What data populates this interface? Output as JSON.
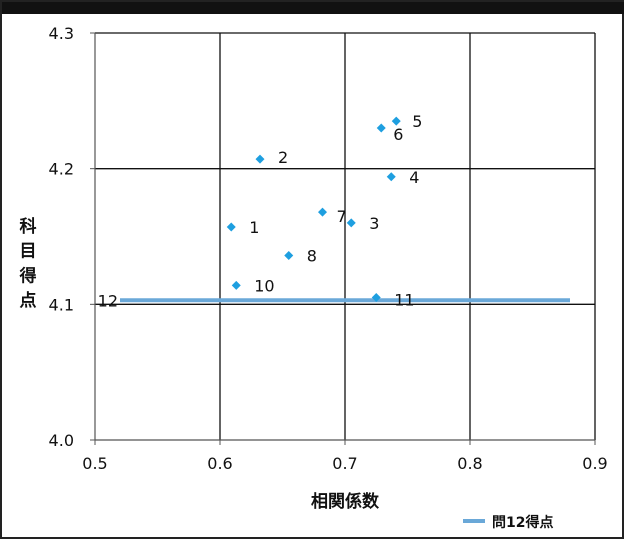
{
  "header_text": "",
  "chart_data": {
    "type": "scatter",
    "title": "",
    "xlabel": "相関係数",
    "ylabel": "科目得点",
    "xlim": [
      0.5,
      0.9
    ],
    "ylim": [
      4.0,
      4.3
    ],
    "x_ticks": [
      0.5,
      0.6,
      0.7,
      0.8,
      0.9
    ],
    "y_ticks": [
      4.0,
      4.1,
      4.2,
      4.3
    ],
    "x_tick_labels": [
      "0.5",
      "0.6",
      "0.7",
      "0.8",
      "0.9"
    ],
    "y_tick_labels": [
      "4.0",
      "4.1",
      "4.2",
      "4.3"
    ],
    "grid": true,
    "points": [
      {
        "label": "1",
        "x": 0.609,
        "y": 4.157
      },
      {
        "label": "2",
        "x": 0.632,
        "y": 4.207
      },
      {
        "label": "3",
        "x": 0.705,
        "y": 4.16
      },
      {
        "label": "4",
        "x": 0.737,
        "y": 4.194
      },
      {
        "label": "5",
        "x": 0.741,
        "y": 4.235
      },
      {
        "label": "6",
        "x": 0.729,
        "y": 4.23
      },
      {
        "label": "7",
        "x": 0.682,
        "y": 4.168
      },
      {
        "label": "8",
        "x": 0.655,
        "y": 4.136
      },
      {
        "label": "10",
        "x": 0.613,
        "y": 4.114
      },
      {
        "label": "11",
        "x": 0.725,
        "y": 4.105
      }
    ],
    "reference_line": {
      "label": "12",
      "name": "問12得点",
      "x": [
        0.52,
        0.88
      ],
      "y": 4.103
    },
    "legend": {
      "position": "bottom-right",
      "entries": [
        "問12得点"
      ]
    },
    "colors": {
      "points": "#1e9fe0",
      "line": "#6aa8d8",
      "grid": "#000000"
    }
  }
}
